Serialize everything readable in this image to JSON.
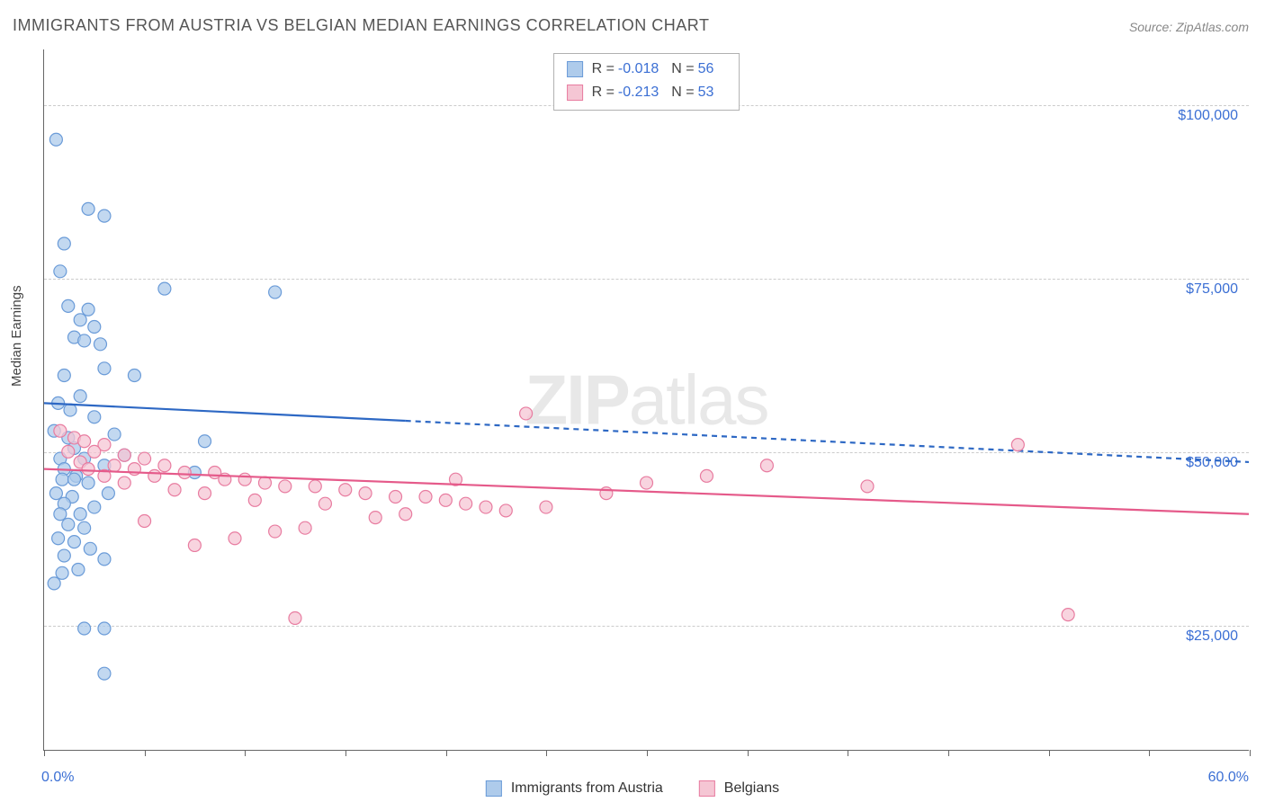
{
  "title": "IMMIGRANTS FROM AUSTRIA VS BELGIAN MEDIAN EARNINGS CORRELATION CHART",
  "source": "Source: ZipAtlas.com",
  "y_axis_label": "Median Earnings",
  "watermark_bold": "ZIP",
  "watermark_light": "atlas",
  "chart": {
    "type": "scatter",
    "xlim": [
      0,
      60
    ],
    "ylim": [
      7000,
      108000
    ],
    "x_tick_positions": [
      0,
      5,
      10,
      15,
      20,
      25,
      30,
      35,
      40,
      45,
      50,
      55,
      60
    ],
    "x_start_label": "0.0%",
    "x_end_label": "60.0%",
    "y_gridlines": [
      25000,
      50000,
      75000,
      100000
    ],
    "y_tick_labels": [
      "$25,000",
      "$50,000",
      "$75,000",
      "$100,000"
    ],
    "background_color": "#ffffff",
    "grid_color": "#cccccc",
    "grid_dash": "4,4",
    "marker_radius": 7,
    "marker_stroke_width": 1.2,
    "series": [
      {
        "name": "Immigrants from Austria",
        "fill_color": "#aecbeb",
        "stroke_color": "#6a9bd8",
        "line_color": "#2d68c4",
        "line_width": 2.2,
        "R": "-0.018",
        "N": "56",
        "trend": {
          "y_start": 57000,
          "y_end": 48500,
          "solid_until_x": 18
        },
        "points": [
          [
            0.6,
            95000
          ],
          [
            2.2,
            85000
          ],
          [
            3.0,
            84000
          ],
          [
            1.0,
            80000
          ],
          [
            0.8,
            76000
          ],
          [
            6.0,
            73500
          ],
          [
            11.5,
            73000
          ],
          [
            1.2,
            71000
          ],
          [
            2.2,
            70500
          ],
          [
            1.8,
            69000
          ],
          [
            2.5,
            68000
          ],
          [
            1.5,
            66500
          ],
          [
            2.0,
            66000
          ],
          [
            2.8,
            65500
          ],
          [
            3.0,
            62000
          ],
          [
            1.0,
            61000
          ],
          [
            4.5,
            61000
          ],
          [
            1.8,
            58000
          ],
          [
            0.7,
            57000
          ],
          [
            1.3,
            56000
          ],
          [
            2.5,
            55000
          ],
          [
            0.5,
            53000
          ],
          [
            1.2,
            52000
          ],
          [
            3.5,
            52500
          ],
          [
            1.5,
            50500
          ],
          [
            0.8,
            49000
          ],
          [
            2.0,
            49000
          ],
          [
            4.0,
            49500
          ],
          [
            1.0,
            47500
          ],
          [
            3.0,
            48000
          ],
          [
            1.6,
            46500
          ],
          [
            0.9,
            46000
          ],
          [
            2.2,
            45500
          ],
          [
            0.6,
            44000
          ],
          [
            1.4,
            43500
          ],
          [
            3.2,
            44000
          ],
          [
            1.0,
            42500
          ],
          [
            2.5,
            42000
          ],
          [
            0.8,
            41000
          ],
          [
            1.8,
            41000
          ],
          [
            1.2,
            39500
          ],
          [
            2.0,
            39000
          ],
          [
            0.7,
            37500
          ],
          [
            1.5,
            37000
          ],
          [
            2.3,
            36000
          ],
          [
            1.0,
            35000
          ],
          [
            3.0,
            34500
          ],
          [
            7.5,
            47000
          ],
          [
            0.9,
            32500
          ],
          [
            1.7,
            33000
          ],
          [
            0.5,
            31000
          ],
          [
            8.0,
            51500
          ],
          [
            2.0,
            24500
          ],
          [
            3.0,
            24500
          ],
          [
            3.0,
            18000
          ],
          [
            1.5,
            46000
          ]
        ]
      },
      {
        "name": "Belgians",
        "fill_color": "#f5c6d4",
        "stroke_color": "#e87ca0",
        "line_color": "#e55a8a",
        "line_width": 2.2,
        "R": "-0.213",
        "N": "53",
        "trend": {
          "y_start": 47500,
          "y_end": 41000,
          "solid_until_x": 60
        },
        "points": [
          [
            0.8,
            53000
          ],
          [
            1.5,
            52000
          ],
          [
            2.0,
            51500
          ],
          [
            3.0,
            51000
          ],
          [
            1.2,
            50000
          ],
          [
            2.5,
            50000
          ],
          [
            4.0,
            49500
          ],
          [
            5.0,
            49000
          ],
          [
            1.8,
            48500
          ],
          [
            3.5,
            48000
          ],
          [
            6.0,
            48000
          ],
          [
            2.2,
            47500
          ],
          [
            4.5,
            47500
          ],
          [
            7.0,
            47000
          ],
          [
            8.5,
            47000
          ],
          [
            3.0,
            46500
          ],
          [
            5.5,
            46500
          ],
          [
            9.0,
            46000
          ],
          [
            10.0,
            46000
          ],
          [
            11.0,
            45500
          ],
          [
            4.0,
            45500
          ],
          [
            12.0,
            45000
          ],
          [
            13.5,
            45000
          ],
          [
            6.5,
            44500
          ],
          [
            15.0,
            44500
          ],
          [
            16.0,
            44000
          ],
          [
            8.0,
            44000
          ],
          [
            17.5,
            43500
          ],
          [
            19.0,
            43500
          ],
          [
            10.5,
            43000
          ],
          [
            20.0,
            43000
          ],
          [
            21.0,
            42500
          ],
          [
            14.0,
            42500
          ],
          [
            22.0,
            42000
          ],
          [
            23.0,
            41500
          ],
          [
            25.0,
            42000
          ],
          [
            18.0,
            41000
          ],
          [
            28.0,
            44000
          ],
          [
            30.0,
            45500
          ],
          [
            33.0,
            46500
          ],
          [
            16.5,
            40500
          ],
          [
            36.0,
            48000
          ],
          [
            24.0,
            55500
          ],
          [
            41.0,
            45000
          ],
          [
            11.5,
            38500
          ],
          [
            13.0,
            39000
          ],
          [
            9.5,
            37500
          ],
          [
            7.5,
            36500
          ],
          [
            12.5,
            26000
          ],
          [
            51.0,
            26500
          ],
          [
            48.5,
            51000
          ],
          [
            5.0,
            40000
          ],
          [
            20.5,
            46000
          ]
        ]
      }
    ]
  },
  "legend_top": {
    "R_label": "R =",
    "N_label": "N ="
  },
  "legend_bottom_labels": [
    "Immigrants from Austria",
    "Belgians"
  ]
}
